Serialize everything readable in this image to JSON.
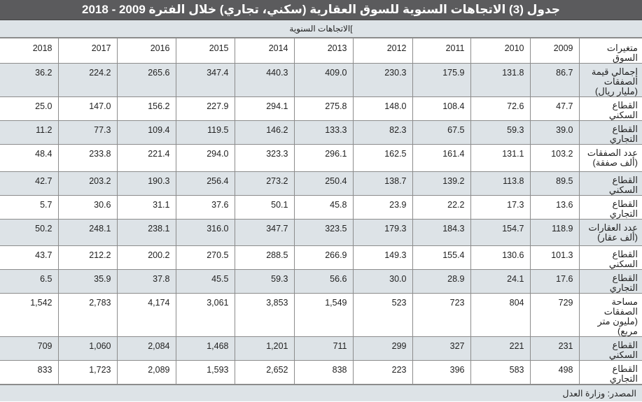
{
  "title": "جدول (3) الاتجاهات السنوية للسوق العقارية (سكني، تجاري) خلال الفترة 2009 - 2018",
  "subheader": "]الاتجاهات السنوية",
  "table": {
    "label_header": "متغيرات السوق",
    "years": [
      "2018",
      "2017",
      "2016",
      "2015",
      "2014",
      "2013",
      "2012",
      "2011",
      "2010",
      "2009"
    ],
    "rows": [
      {
        "label": "إجمالي قيمة الصفقات (مليار ريال)",
        "values": [
          "36.2",
          "224.2",
          "265.6",
          "347.4",
          "440.3",
          "409.0",
          "230.3",
          "175.9",
          "131.8",
          "86.7"
        ]
      },
      {
        "label": "القطاع السكني",
        "values": [
          "25.0",
          "147.0",
          "156.2",
          "227.9",
          "294.1",
          "275.8",
          "148.0",
          "108.4",
          "72.6",
          "47.7"
        ]
      },
      {
        "label": "القطاع التجاري",
        "values": [
          "11.2",
          "77.3",
          "109.4",
          "119.5",
          "146.2",
          "133.3",
          "82.3",
          "67.5",
          "59.3",
          "39.0"
        ]
      },
      {
        "label": "عدد الصفقات (ألف صفقة)",
        "values": [
          "48.4",
          "233.8",
          "221.4",
          "294.0",
          "323.3",
          "296.1",
          "162.5",
          "161.4",
          "131.1",
          "103.2"
        ]
      },
      {
        "label": "القطاع السكني",
        "values": [
          "42.7",
          "203.2",
          "190.3",
          "256.4",
          "273.2",
          "250.4",
          "138.7",
          "139.2",
          "113.8",
          "89.5"
        ]
      },
      {
        "label": "القطاع التجاري",
        "values": [
          "5.7",
          "30.6",
          "31.1",
          "37.6",
          "50.1",
          "45.8",
          "23.9",
          "22.2",
          "17.3",
          "13.6"
        ]
      },
      {
        "label": "عدد العقارات (ألف عقار)",
        "values": [
          "50.2",
          "248.1",
          "238.1",
          "316.0",
          "347.7",
          "323.5",
          "179.3",
          "184.3",
          "154.7",
          "118.9"
        ]
      },
      {
        "label": "القطاع السكني",
        "values": [
          "43.7",
          "212.2",
          "200.2",
          "270.5",
          "288.5",
          "266.9",
          "149.3",
          "155.4",
          "130.6",
          "101.3"
        ]
      },
      {
        "label": "القطاع التجاري",
        "values": [
          "6.5",
          "35.9",
          "37.8",
          "45.5",
          "59.3",
          "56.6",
          "30.0",
          "28.9",
          "24.1",
          "17.6"
        ]
      },
      {
        "label": "مساحة الصفقات (مليون متر مربع)",
        "values": [
          "1,542",
          "2,783",
          "4,174",
          "3,061",
          "3,853",
          "1,549",
          "523",
          "723",
          "804",
          "729"
        ]
      },
      {
        "label": "القطاع السكني",
        "values": [
          "709",
          "1,060",
          "2,084",
          "1,468",
          "1,201",
          "711",
          "299",
          "327",
          "221",
          "231"
        ]
      },
      {
        "label": "القطاع التجاري",
        "values": [
          "833",
          "1,723",
          "2,089",
          "1,593",
          "2,652",
          "838",
          "223",
          "396",
          "583",
          "498"
        ]
      }
    ]
  },
  "source": "المصدر: وزارة العدل",
  "colors": {
    "title_bg": "#5b5b5d",
    "shade_bg": "#dde3e7",
    "border": "#8c8c8c"
  }
}
